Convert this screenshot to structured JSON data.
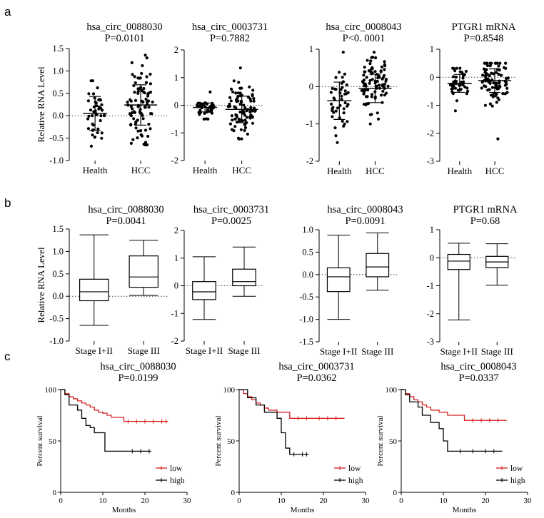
{
  "panels": {
    "a": "a",
    "b": "b",
    "c": "c"
  },
  "colors": {
    "axis": "#000000",
    "low": "#d42020",
    "high": "#000000",
    "dotted": "#444444"
  },
  "chart_data": [
    {
      "panel": "a",
      "type": "scatter",
      "title": "hsa_circ_0088030",
      "pvalue": "P=0.0101",
      "ylabel": "Relative RNA Level",
      "categories": [
        "Health",
        "HCC"
      ],
      "ylim": [
        -1.0,
        1.5
      ],
      "yticks": [
        "-1.0",
        "-0.5",
        "0.0",
        "0.5",
        "1.0",
        "1.5"
      ],
      "ytick_values": [
        -1.0,
        -0.5,
        0.0,
        0.5,
        1.0,
        1.5
      ],
      "groups": [
        {
          "name": "Health",
          "n": 45,
          "center": 0.05,
          "sd": 0.38,
          "min": -0.68,
          "max": 0.78
        },
        {
          "name": "HCC",
          "n": 90,
          "center": 0.24,
          "sd": 0.45,
          "min": -0.65,
          "max": 1.35
        }
      ]
    },
    {
      "panel": "a",
      "type": "scatter",
      "title": "hsa_circ_0003731",
      "pvalue": "P=0.7882",
      "ylabel": "",
      "categories": [
        "Health",
        "HCC"
      ],
      "ylim": [
        -2,
        2
      ],
      "yticks": [
        "-2",
        "-1",
        "0",
        "1",
        "2"
      ],
      "ytick_values": [
        -2,
        -1,
        0,
        1,
        2
      ],
      "groups": [
        {
          "name": "Health",
          "n": 45,
          "center": -0.08,
          "sd": 0.16,
          "min": -0.5,
          "max": 0.48
        },
        {
          "name": "HCC",
          "n": 90,
          "center": -0.15,
          "sd": 0.48,
          "min": -1.22,
          "max": 1.35
        }
      ]
    },
    {
      "panel": "a",
      "type": "scatter",
      "title": "hsa_circ_0008043",
      "pvalue": "P<0. 0001",
      "ylabel": "",
      "categories": [
        "Health",
        "HCC"
      ],
      "ylim": [
        -2,
        1
      ],
      "yticks": [
        "-2",
        "-1",
        "0",
        "1"
      ],
      "ytick_values": [
        -2,
        -1,
        0,
        1
      ],
      "groups": [
        {
          "name": "Health",
          "n": 45,
          "center": -0.38,
          "sd": 0.5,
          "min": -1.5,
          "max": 0.92
        },
        {
          "name": "HCC",
          "n": 90,
          "center": -0.05,
          "sd": 0.38,
          "min": -1.0,
          "max": 0.92
        }
      ]
    },
    {
      "panel": "a",
      "type": "scatter",
      "title": "PTGR1 mRNA",
      "pvalue": "P=0.8548",
      "ylabel": "",
      "categories": [
        "Health",
        "HCC"
      ],
      "ylim": [
        -3,
        1
      ],
      "yticks": [
        "-3",
        "-2",
        "-1",
        "0",
        "1"
      ],
      "ytick_values": [
        -3,
        -2,
        -1,
        0,
        1
      ],
      "groups": [
        {
          "name": "Health",
          "n": 45,
          "center": -0.22,
          "sd": 0.32,
          "min": -1.2,
          "max": 0.32
        },
        {
          "name": "HCC",
          "n": 90,
          "center": -0.12,
          "sd": 0.42,
          "min": -2.2,
          "max": 0.5
        }
      ]
    },
    {
      "panel": "b",
      "type": "box",
      "title": "hsa_circ_0088030",
      "pvalue": "P=0.0041",
      "ylabel": "Relative RNA Level",
      "categories": [
        "Stage I+II",
        "Stage III"
      ],
      "ylim": [
        -1.0,
        1.5
      ],
      "yticks": [
        "-1.0",
        "-0.5",
        "0.0",
        "0.5",
        "1.0",
        "1.5"
      ],
      "ytick_values": [
        -1.0,
        -0.5,
        0.0,
        0.5,
        1.0,
        1.5
      ],
      "boxes": [
        {
          "name": "Stage I+II",
          "min": -0.65,
          "q1": -0.1,
          "median": 0.1,
          "q3": 0.38,
          "max": 1.37
        },
        {
          "name": "Stage III",
          "min": 0.02,
          "q1": 0.2,
          "median": 0.43,
          "q3": 0.9,
          "max": 1.25
        }
      ]
    },
    {
      "panel": "b",
      "type": "box",
      "title": "hsa_circ_0003731",
      "pvalue": "P=0.0025",
      "ylabel": "",
      "categories": [
        "Stage I+II",
        "Stage III"
      ],
      "ylim": [
        -2,
        2
      ],
      "yticks": [
        "-2",
        "-1",
        "0",
        "1",
        "2"
      ],
      "ytick_values": [
        -2,
        -1,
        0,
        1,
        2
      ],
      "boxes": [
        {
          "name": "Stage I+II",
          "min": -1.22,
          "q1": -0.5,
          "median": -0.22,
          "q3": 0.15,
          "max": 1.05
        },
        {
          "name": "Stage III",
          "min": -0.38,
          "q1": 0.0,
          "median": 0.15,
          "q3": 0.6,
          "max": 1.4
        }
      ]
    },
    {
      "panel": "b",
      "type": "box",
      "title": "hsa_circ_0008043",
      "pvalue": "P=0.0091",
      "ylabel": "",
      "categories": [
        "Stage I+II",
        "Stage III"
      ],
      "ylim": [
        -1.5,
        1.0
      ],
      "yticks": [
        "-1.5",
        "-1.0",
        "-0.5",
        "0.0",
        "0.5",
        "1.0"
      ],
      "ytick_values": [
        -1.5,
        -1.0,
        -0.5,
        0.0,
        0.5,
        1.0
      ],
      "boxes": [
        {
          "name": "Stage I+II",
          "min": -1.0,
          "q1": -0.38,
          "median": -0.05,
          "q3": 0.15,
          "max": 0.88
        },
        {
          "name": "Stage III",
          "min": -0.35,
          "q1": -0.05,
          "median": 0.17,
          "q3": 0.47,
          "max": 0.93
        }
      ]
    },
    {
      "panel": "b",
      "type": "box",
      "title": "PTGR1 mRNA",
      "pvalue": "P=0.68",
      "ylabel": "",
      "categories": [
        "Stage I+II",
        "Stage III"
      ],
      "ylim": [
        -3,
        1
      ],
      "yticks": [
        "-3",
        "-2",
        "-1",
        "0",
        "1"
      ],
      "ytick_values": [
        -3,
        -2,
        -1,
        0,
        1
      ],
      "boxes": [
        {
          "name": "Stage I+II",
          "min": -2.22,
          "q1": -0.42,
          "median": -0.12,
          "q3": 0.12,
          "max": 0.52
        },
        {
          "name": "Stage III",
          "min": -0.98,
          "q1": -0.35,
          "median": -0.15,
          "q3": 0.05,
          "max": 0.5
        }
      ]
    },
    {
      "panel": "c",
      "type": "line",
      "title": "hsa_circ_0088030",
      "pvalue": "P=0.0199",
      "ylabel": "Percent survival",
      "xlabel": "Months",
      "xlim": [
        0,
        30
      ],
      "ylim": [
        0,
        100
      ],
      "xticks": [
        "0",
        "10",
        "20",
        "30"
      ],
      "xtick_values": [
        0,
        10,
        20,
        30
      ],
      "yticks": [
        "0",
        "50",
        "100"
      ],
      "ytick_values": [
        0,
        50,
        100
      ],
      "series": [
        {
          "name": "low",
          "color": "#d42020",
          "x": [
            0,
            1,
            2,
            3,
            4,
            5,
            6,
            7,
            8,
            9,
            10,
            11,
            12,
            15,
            25.5
          ],
          "y": [
            100,
            96,
            93,
            91,
            89,
            87,
            85,
            83,
            80,
            78,
            77,
            75,
            73,
            69,
            69
          ],
          "censor_x": [
            16,
            18,
            20,
            22,
            24,
            25
          ]
        },
        {
          "name": "high",
          "color": "#000000",
          "x": [
            0,
            1,
            2,
            4,
            5,
            6,
            7,
            8,
            10.5,
            21.5
          ],
          "y": [
            100,
            95,
            85,
            80,
            72,
            65,
            63,
            58,
            40,
            40
          ],
          "censor_x": [
            17,
            19,
            21
          ]
        }
      ]
    },
    {
      "panel": "c",
      "type": "line",
      "title": "hsa_circ_0003731",
      "pvalue": "P=0.0362",
      "ylabel": "Percent survival",
      "xlabel": "Months",
      "xlim": [
        0,
        30
      ],
      "ylim": [
        0,
        100
      ],
      "xticks": [
        "0",
        "10",
        "20",
        "30"
      ],
      "xtick_values": [
        0,
        10,
        20,
        30
      ],
      "yticks": [
        "0",
        "50",
        "100"
      ],
      "ytick_values": [
        0,
        50,
        100
      ],
      "series": [
        {
          "name": "low",
          "color": "#d42020",
          "x": [
            0,
            1,
            2,
            3,
            4,
            5,
            6,
            7,
            9,
            12,
            25
          ],
          "y": [
            100,
            96,
            93,
            90,
            87,
            85,
            82,
            80,
            78,
            72,
            72
          ],
          "censor_x": [
            14,
            16,
            19,
            21,
            23
          ]
        },
        {
          "name": "high",
          "color": "#000000",
          "x": [
            0,
            2,
            4,
            6,
            9,
            10,
            11,
            12,
            16.5
          ],
          "y": [
            100,
            92,
            85,
            78,
            72,
            58,
            43,
            37,
            37
          ],
          "censor_x": [
            13,
            15,
            16
          ]
        }
      ]
    },
    {
      "panel": "c",
      "type": "line",
      "title": "hsa_circ_0008043",
      "pvalue": "P=0.0337",
      "ylabel": "Percent survival",
      "xlabel": "Months",
      "xlim": [
        0,
        30
      ],
      "ylim": [
        0,
        100
      ],
      "xticks": [
        "0",
        "10",
        "20",
        "30"
      ],
      "xtick_values": [
        0,
        10,
        20,
        30
      ],
      "yticks": [
        "0",
        "50",
        "100"
      ],
      "ytick_values": [
        0,
        50,
        100
      ],
      "series": [
        {
          "name": "low",
          "color": "#d42020",
          "x": [
            0,
            1,
            2,
            3,
            4,
            5,
            6,
            7,
            9,
            11,
            15,
            25
          ],
          "y": [
            100,
            96,
            93,
            90,
            88,
            85,
            83,
            80,
            78,
            75,
            70,
            70
          ],
          "censor_x": [
            17,
            19,
            21,
            23
          ]
        },
        {
          "name": "high",
          "color": "#000000",
          "x": [
            0,
            1,
            2,
            4,
            5,
            7,
            9,
            10,
            11,
            24
          ],
          "y": [
            100,
            95,
            88,
            83,
            75,
            68,
            62,
            50,
            40,
            40
          ],
          "censor_x": [
            14,
            17,
            20,
            22
          ]
        }
      ]
    }
  ]
}
